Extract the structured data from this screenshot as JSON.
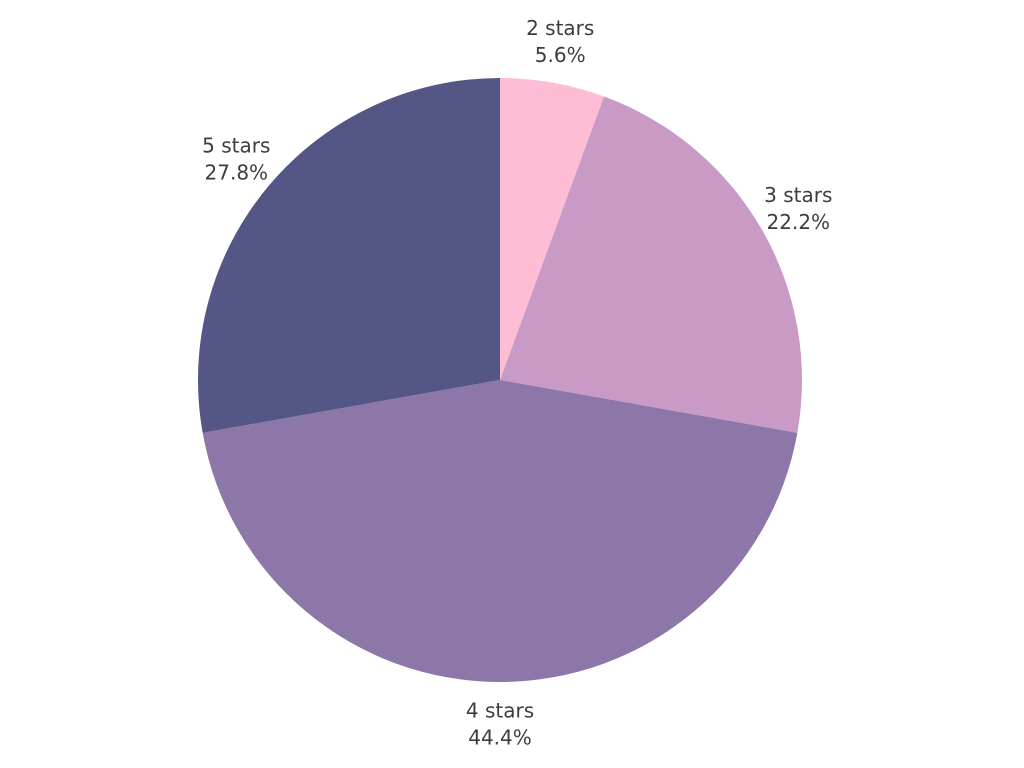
{
  "chart_data": {
    "type": "pie",
    "title": "",
    "labels": [
      "2 stars",
      "3 stars",
      "4 stars",
      "5 stars"
    ],
    "values": [
      5.6,
      22.2,
      44.4,
      27.8
    ],
    "display_percents": [
      "5.6%",
      "22.2%",
      "44.4%",
      "27.8%"
    ],
    "colors": [
      "#fdbdd5",
      "#c89ac5",
      "#8c77a8",
      "#545685"
    ],
    "label_text_color": "#3d3d3d",
    "background_color": "#ffffff",
    "start_angle": "top",
    "direction": "clockwise",
    "legend": "none",
    "label_position": "outside"
  }
}
